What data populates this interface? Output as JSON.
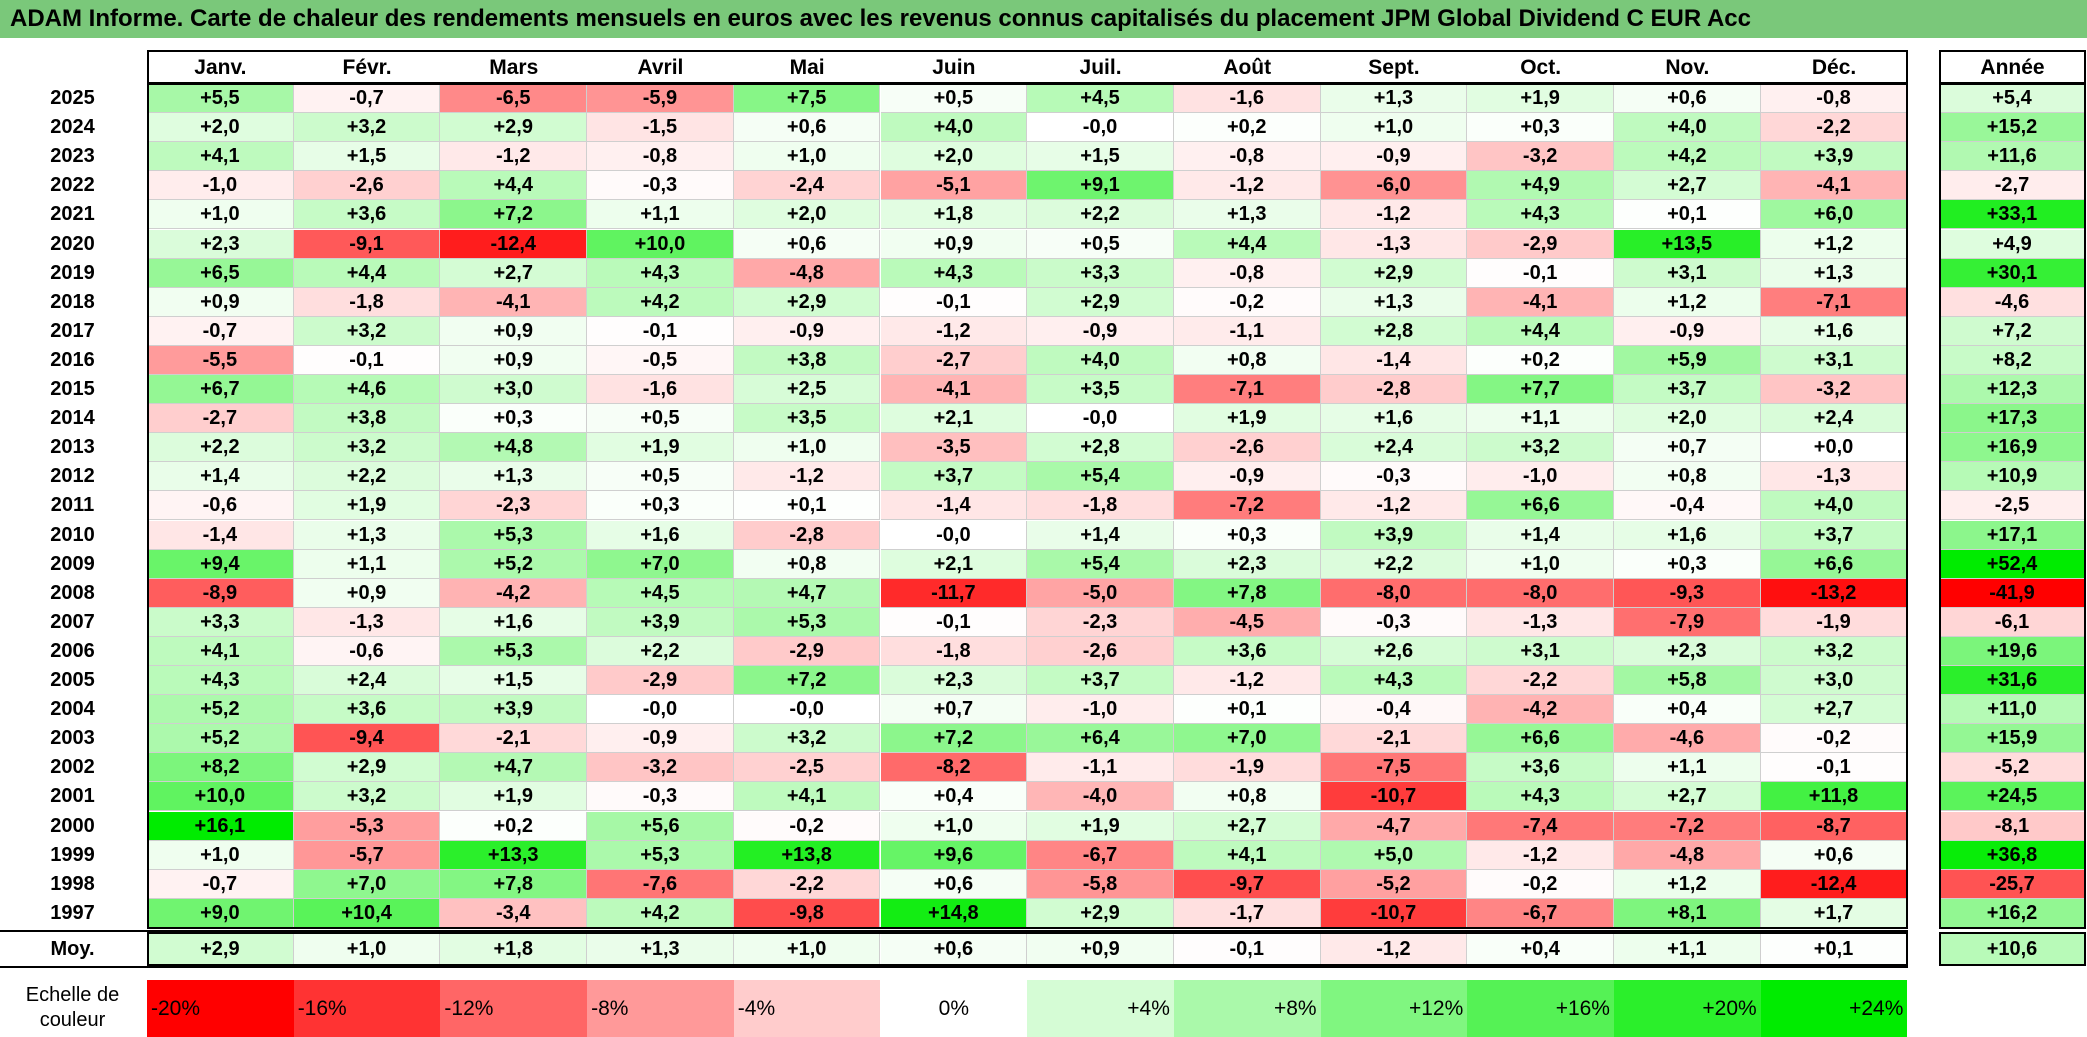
{
  "title": "ADAM Informe. Carte de chaleur des rendements mensuels en euros avec les revenus connus capitalisés du placement JPM Global Dividend C EUR Acc",
  "chart_data": {
    "type": "heatmap",
    "columns": [
      "Janv.",
      "Févr.",
      "Mars",
      "Avril",
      "Mai",
      "Juin",
      "Juil.",
      "Août",
      "Sept.",
      "Oct.",
      "Nov.",
      "Déc."
    ],
    "annual_header": "Année",
    "rows": [
      {
        "year": "2025",
        "values": [
          "+5,5",
          "-0,7",
          "-6,5",
          "-5,9",
          "+7,5",
          "+0,5",
          "+4,5",
          "-1,6",
          "+1,3",
          "+1,9",
          "+0,6",
          "-0,8"
        ],
        "annual": "+5,4"
      },
      {
        "year": "2024",
        "values": [
          "+2,0",
          "+3,2",
          "+2,9",
          "-1,5",
          "+0,6",
          "+4,0",
          "-0,0",
          "+0,2",
          "+1,0",
          "+0,3",
          "+4,0",
          "-2,2"
        ],
        "annual": "+15,2"
      },
      {
        "year": "2023",
        "values": [
          "+4,1",
          "+1,5",
          "-1,2",
          "-0,8",
          "+1,0",
          "+2,0",
          "+1,5",
          "-0,8",
          "-0,9",
          "-3,2",
          "+4,2",
          "+3,9"
        ],
        "annual": "+11,6"
      },
      {
        "year": "2022",
        "values": [
          "-1,0",
          "-2,6",
          "+4,4",
          "-0,3",
          "-2,4",
          "-5,1",
          "+9,1",
          "-1,2",
          "-6,0",
          "+4,9",
          "+2,7",
          "-4,1"
        ],
        "annual": "-2,7"
      },
      {
        "year": "2021",
        "values": [
          "+1,0",
          "+3,6",
          "+7,2",
          "+1,1",
          "+2,0",
          "+1,8",
          "+2,2",
          "+1,3",
          "-1,2",
          "+4,3",
          "+0,1",
          "+6,0"
        ],
        "annual": "+33,1"
      },
      {
        "year": "2020",
        "values": [
          "+2,3",
          "-9,1",
          "-12,4",
          "+10,0",
          "+0,6",
          "+0,9",
          "+0,5",
          "+4,4",
          "-1,3",
          "-2,9",
          "+13,5",
          "+1,2"
        ],
        "annual": "+4,9"
      },
      {
        "year": "2019",
        "values": [
          "+6,5",
          "+4,4",
          "+2,7",
          "+4,3",
          "-4,8",
          "+4,3",
          "+3,3",
          "-0,8",
          "+2,9",
          "-0,1",
          "+3,1",
          "+1,3"
        ],
        "annual": "+30,1"
      },
      {
        "year": "2018",
        "values": [
          "+0,9",
          "-1,8",
          "-4,1",
          "+4,2",
          "+2,9",
          "-0,1",
          "+2,9",
          "-0,2",
          "+1,3",
          "-4,1",
          "+1,2",
          "-7,1"
        ],
        "annual": "-4,6"
      },
      {
        "year": "2017",
        "values": [
          "-0,7",
          "+3,2",
          "+0,9",
          "-0,1",
          "-0,9",
          "-1,2",
          "-0,9",
          "-1,1",
          "+2,8",
          "+4,4",
          "-0,9",
          "+1,6"
        ],
        "annual": "+7,2"
      },
      {
        "year": "2016",
        "values": [
          "-5,5",
          "-0,1",
          "+0,9",
          "-0,5",
          "+3,8",
          "-2,7",
          "+4,0",
          "+0,8",
          "-1,4",
          "+0,2",
          "+5,9",
          "+3,1"
        ],
        "annual": "+8,2"
      },
      {
        "year": "2015",
        "values": [
          "+6,7",
          "+4,6",
          "+3,0",
          "-1,6",
          "+2,5",
          "-4,1",
          "+3,5",
          "-7,1",
          "-2,8",
          "+7,7",
          "+3,7",
          "-3,2"
        ],
        "annual": "+12,3"
      },
      {
        "year": "2014",
        "values": [
          "-2,7",
          "+3,8",
          "+0,3",
          "+0,5",
          "+3,5",
          "+2,1",
          "-0,0",
          "+1,9",
          "+1,6",
          "+1,1",
          "+2,0",
          "+2,4"
        ],
        "annual": "+17,3"
      },
      {
        "year": "2013",
        "values": [
          "+2,2",
          "+3,2",
          "+4,8",
          "+1,9",
          "+1,0",
          "-3,5",
          "+2,8",
          "-2,6",
          "+2,4",
          "+3,2",
          "+0,7",
          "+0,0"
        ],
        "annual": "+16,9"
      },
      {
        "year": "2012",
        "values": [
          "+1,4",
          "+2,2",
          "+1,3",
          "+0,5",
          "-1,2",
          "+3,7",
          "+5,4",
          "-0,9",
          "-0,3",
          "-1,0",
          "+0,8",
          "-1,3"
        ],
        "annual": "+10,9"
      },
      {
        "year": "2011",
        "values": [
          "-0,6",
          "+1,9",
          "-2,3",
          "+0,3",
          "+0,1",
          "-1,4",
          "-1,8",
          "-7,2",
          "-1,2",
          "+6,6",
          "-0,4",
          "+4,0"
        ],
        "annual": "-2,5"
      },
      {
        "year": "2010",
        "values": [
          "-1,4",
          "+1,3",
          "+5,3",
          "+1,6",
          "-2,8",
          "-0,0",
          "+1,4",
          "+0,3",
          "+3,9",
          "+1,4",
          "+1,6",
          "+3,7"
        ],
        "annual": "+17,1"
      },
      {
        "year": "2009",
        "values": [
          "+9,4",
          "+1,1",
          "+5,2",
          "+7,0",
          "+0,8",
          "+2,1",
          "+5,4",
          "+2,3",
          "+2,2",
          "+1,0",
          "+0,3",
          "+6,6"
        ],
        "annual": "+52,4"
      },
      {
        "year": "2008",
        "values": [
          "-8,9",
          "+0,9",
          "-4,2",
          "+4,5",
          "+4,7",
          "-11,7",
          "-5,0",
          "+7,8",
          "-8,0",
          "-8,0",
          "-9,3",
          "-13,2"
        ],
        "annual": "-41,9"
      },
      {
        "year": "2007",
        "values": [
          "+3,3",
          "-1,3",
          "+1,6",
          "+3,9",
          "+5,3",
          "-0,1",
          "-2,3",
          "-4,5",
          "-0,3",
          "-1,3",
          "-7,9",
          "-1,9"
        ],
        "annual": "-6,1"
      },
      {
        "year": "2006",
        "values": [
          "+4,1",
          "-0,6",
          "+5,3",
          "+2,2",
          "-2,9",
          "-1,8",
          "-2,6",
          "+3,6",
          "+2,6",
          "+3,1",
          "+2,3",
          "+3,2"
        ],
        "annual": "+19,6"
      },
      {
        "year": "2005",
        "values": [
          "+4,3",
          "+2,4",
          "+1,5",
          "-2,9",
          "+7,2",
          "+2,3",
          "+3,7",
          "-1,2",
          "+4,3",
          "-2,2",
          "+5,8",
          "+3,0"
        ],
        "annual": "+31,6"
      },
      {
        "year": "2004",
        "values": [
          "+5,2",
          "+3,6",
          "+3,9",
          "-0,0",
          "-0,0",
          "+0,7",
          "-1,0",
          "+0,1",
          "-0,4",
          "-4,2",
          "+0,4",
          "+2,7"
        ],
        "annual": "+11,0"
      },
      {
        "year": "2003",
        "values": [
          "+5,2",
          "-9,4",
          "-2,1",
          "-0,9",
          "+3,2",
          "+7,2",
          "+6,4",
          "+7,0",
          "-2,1",
          "+6,6",
          "-4,6",
          "-0,2"
        ],
        "annual": "+15,9"
      },
      {
        "year": "2002",
        "values": [
          "+8,2",
          "+2,9",
          "+4,7",
          "-3,2",
          "-2,5",
          "-8,2",
          "-1,1",
          "-1,9",
          "-7,5",
          "+3,6",
          "+1,1",
          "-0,1"
        ],
        "annual": "-5,2"
      },
      {
        "year": "2001",
        "values": [
          "+10,0",
          "+3,2",
          "+1,9",
          "-0,3",
          "+4,1",
          "+0,4",
          "-4,0",
          "+0,8",
          "-10,7",
          "+4,3",
          "+2,7",
          "+11,8"
        ],
        "annual": "+24,5"
      },
      {
        "year": "2000",
        "values": [
          "+16,1",
          "-5,3",
          "+0,2",
          "+5,6",
          "-0,2",
          "+1,0",
          "+1,9",
          "+2,7",
          "-4,7",
          "-7,4",
          "-7,2",
          "-8,7"
        ],
        "annual": "-8,1"
      },
      {
        "year": "1999",
        "values": [
          "+1,0",
          "-5,7",
          "+13,3",
          "+5,3",
          "+13,8",
          "+9,6",
          "-6,7",
          "+4,1",
          "+5,0",
          "-1,2",
          "-4,8",
          "+0,6"
        ],
        "annual": "+36,8"
      },
      {
        "year": "1998",
        "values": [
          "-0,7",
          "+7,0",
          "+7,8",
          "-7,6",
          "-2,2",
          "+0,6",
          "-5,8",
          "-9,7",
          "-5,2",
          "-0,2",
          "+1,2",
          "-12,4"
        ],
        "annual": "-25,7"
      },
      {
        "year": "1997",
        "values": [
          "+9,0",
          "+10,4",
          "-3,4",
          "+4,2",
          "-9,8",
          "+14,8",
          "+2,9",
          "-1,7",
          "-10,7",
          "-6,7",
          "+8,1",
          "+1,7"
        ],
        "annual": "+16,2"
      }
    ],
    "average": {
      "label": "Moy.",
      "values": [
        "+2,9",
        "+1,0",
        "+1,8",
        "+1,3",
        "+1,0",
        "+0,6",
        "+0,9",
        "-0,1",
        "-1,2",
        "+0,4",
        "+1,1",
        "+0,1"
      ],
      "annual": "+10,6"
    },
    "color_scale": {
      "label": "Echelle de couleur",
      "stops": [
        "-20%",
        "-16%",
        "-12%",
        "-8%",
        "-4%",
        "0%",
        "+4%",
        "+8%",
        "+12%",
        "+16%",
        "+20%",
        "+24%"
      ]
    },
    "colors": {
      "title_bar": "#7ac87a",
      "negative_max": "#ff0000",
      "neutral": "#ffffff",
      "positive_max": "#00ee00"
    }
  }
}
